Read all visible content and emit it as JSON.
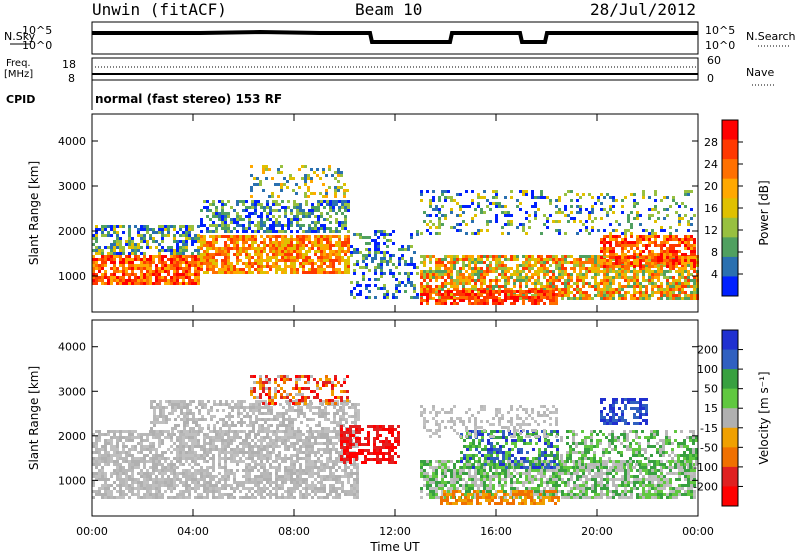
{
  "header": {
    "station": "Unwin (fitACF)",
    "beam": "Beam 10",
    "date": "28/Jul/2012"
  },
  "panels": {
    "nsky_label": "N.Sky",
    "nsearch_label": "N.Search",
    "freq_label_1": "Freq.",
    "freq_label_2": "[MHz]",
    "nave_label": "Nave",
    "cpid_label": "CPID",
    "cpid_text": "normal (fast stereo) 153 RF",
    "noise_ticks": [
      "10^5",
      "10^0"
    ],
    "freq_left_ticks": [
      "18",
      "8"
    ],
    "freq_right_ticks": [
      "60",
      "0"
    ]
  },
  "chart_data": [
    {
      "type": "heatmap",
      "title": "",
      "ylabel": "Slant Range [km]",
      "xlabel": "",
      "x_ticks": [
        "00:00",
        "04:00",
        "08:00",
        "12:00",
        "16:00",
        "20:00",
        "00:00"
      ],
      "y_ticks": [
        1000,
        2000,
        3000,
        4000
      ],
      "ylim": [
        200,
        4600
      ],
      "colorbar": {
        "label": "Power [dB]",
        "ticks": [
          "28",
          "24",
          "20",
          "16",
          "12",
          "8",
          "4"
        ],
        "colors": [
          "#ff0000",
          "#ff3800",
          "#ff7000",
          "#ffa800",
          "#e0c000",
          "#98c040",
          "#50a060",
          "#2a70b0",
          "#0020ff"
        ]
      }
    },
    {
      "type": "heatmap",
      "title": "",
      "ylabel": "Slant Range [km]",
      "xlabel": "Time UT",
      "x_ticks": [
        "00:00",
        "04:00",
        "08:00",
        "12:00",
        "16:00",
        "20:00",
        "00:00"
      ],
      "y_ticks": [
        1000,
        2000,
        3000,
        4000
      ],
      "ylim": [
        200,
        4600
      ],
      "colorbar": {
        "label": "Velocity [m s⁻¹]",
        "ticks": [
          "200",
          "100",
          "50",
          "15",
          "-15",
          "-50",
          "-100",
          "-200"
        ],
        "colors": [
          "#2030d0",
          "#3060c0",
          "#38a040",
          "#60c840",
          "#b0b0b0",
          "#f0a000",
          "#f07000",
          "#e02020",
          "#ff0000"
        ]
      }
    }
  ]
}
